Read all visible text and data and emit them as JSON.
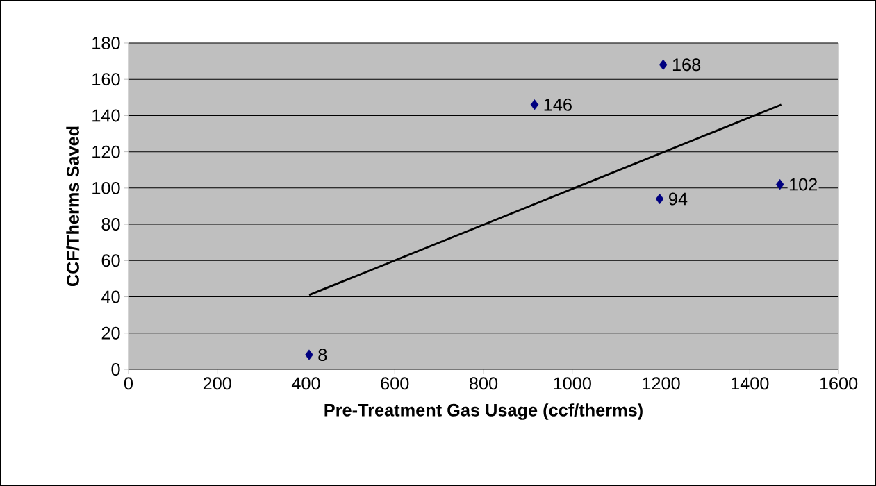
{
  "chart_data": {
    "type": "scatter",
    "xlabel": "Pre-Treatment Gas Usage (ccf/therms)",
    "ylabel": "CCF/Therms Saved",
    "xlim": [
      0,
      1600
    ],
    "xticks": [
      0,
      200,
      400,
      600,
      800,
      1000,
      1200,
      1400,
      1600
    ],
    "ylim": [
      0,
      180
    ],
    "yticks": [
      0,
      20,
      40,
      60,
      80,
      100,
      120,
      140,
      160,
      180
    ],
    "grid": "y",
    "marker": "diamond",
    "series": [
      {
        "color": "#000080",
        "x": [
          407,
          915,
          1205,
          1197,
          1468
        ],
        "values": [
          8,
          146,
          168,
          94,
          102
        ],
        "data_labels": true
      },
      {
        "type": "line",
        "color": "#000000",
        "x": [
          407,
          1471
        ],
        "values": [
          41,
          146
        ],
        "marker": "none",
        "line_style": "solid"
      }
    ]
  }
}
